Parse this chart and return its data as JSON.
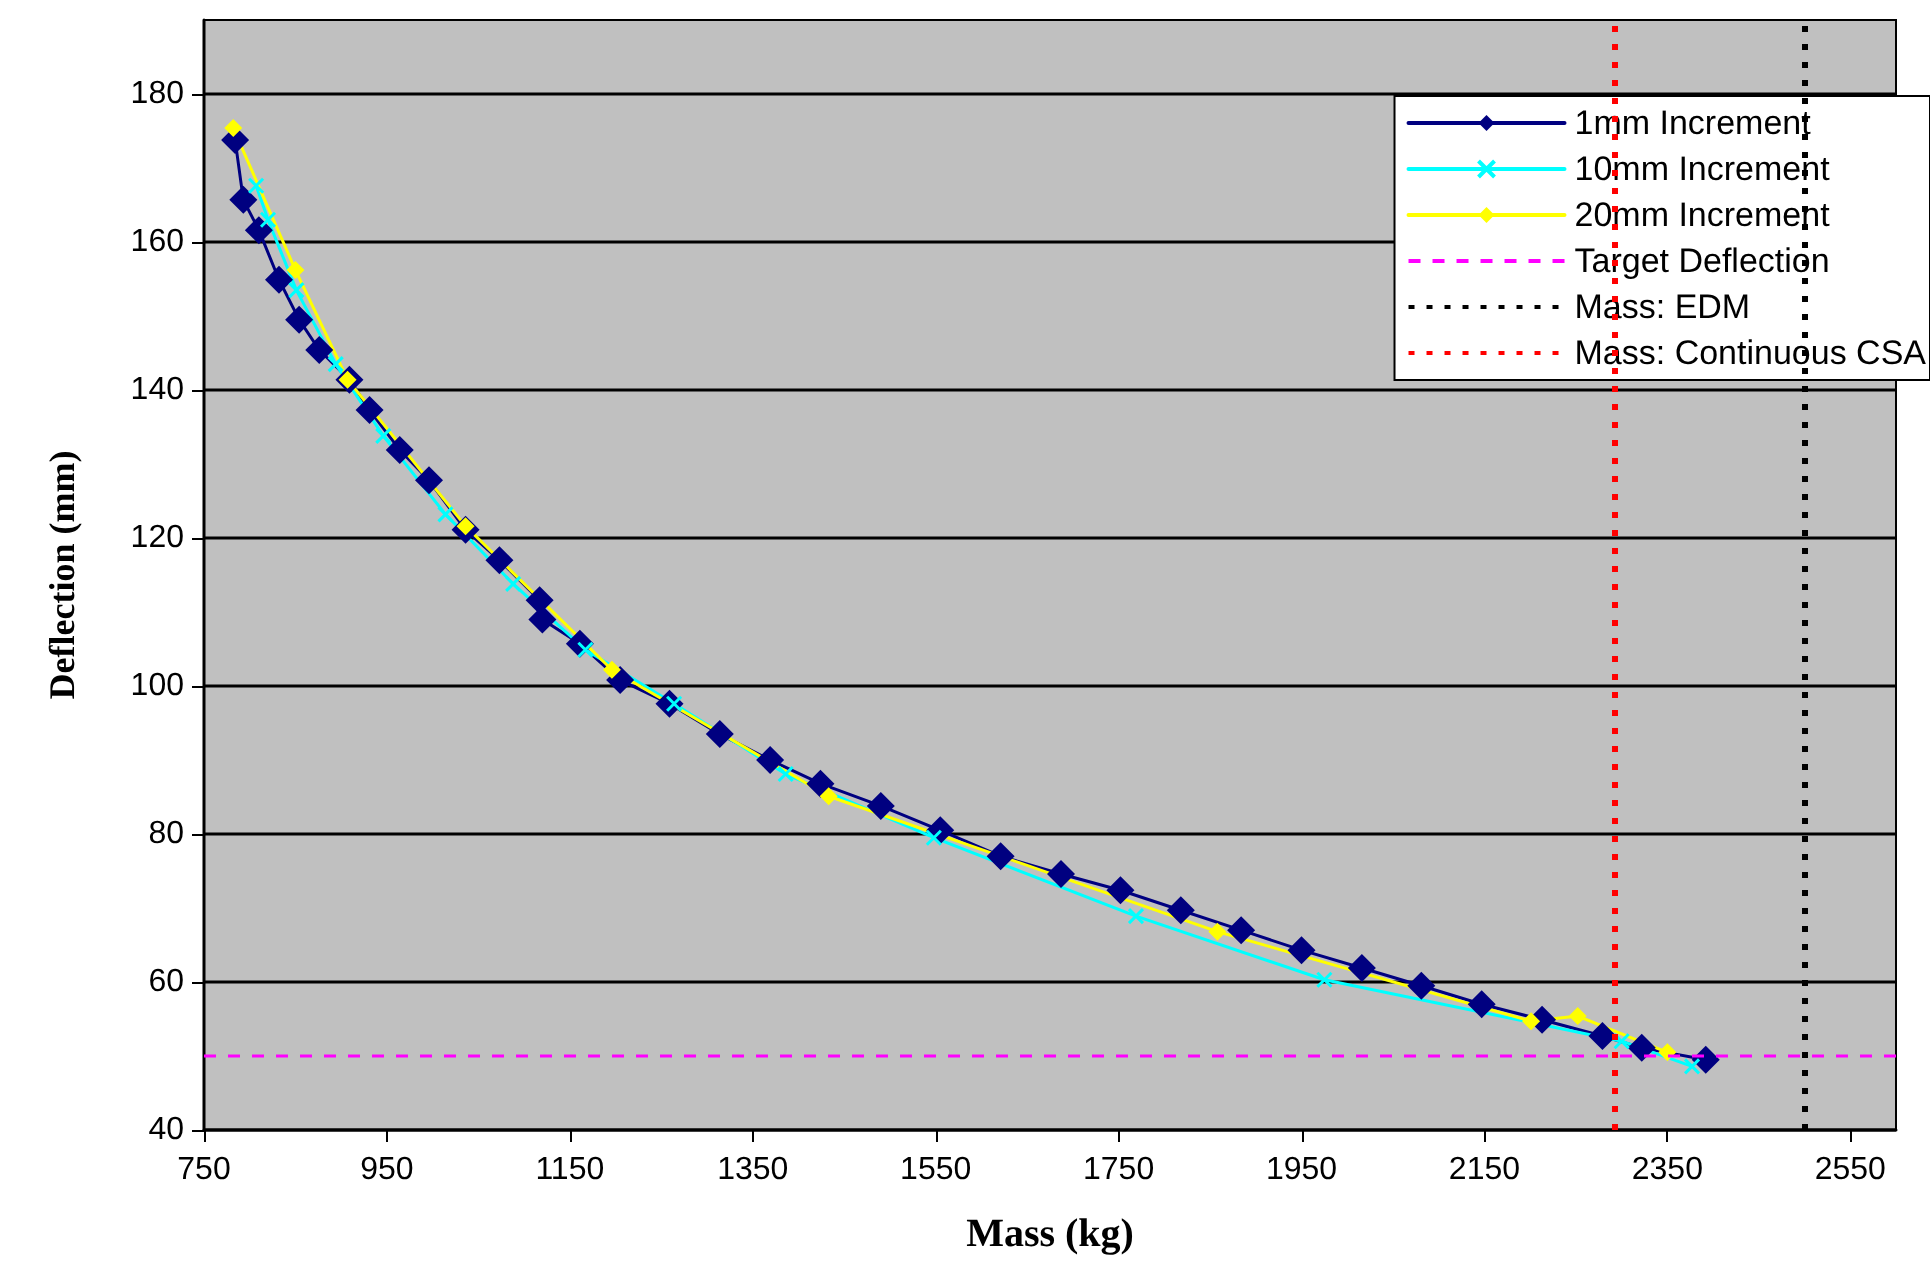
{
  "chart_data": {
    "type": "line",
    "xlabel": "Mass (kg)",
    "ylabel": "Deflection (mm)",
    "xlim": [
      750,
      2600
    ],
    "xticks": [
      750,
      950,
      1150,
      1350,
      1550,
      1750,
      1950,
      2150,
      2350,
      2550
    ],
    "ylim": [
      40,
      190
    ],
    "yticks": [
      40,
      60,
      80,
      100,
      120,
      140,
      160,
      180
    ],
    "grid": "y",
    "legend": "top right",
    "line_style": "solid",
    "series": [
      {
        "name": "1mm Increment",
        "color": "#000080",
        "marker": "diamond",
        "x": [
          784,
          793,
          810,
          832,
          854,
          876,
          909,
          931,
          964,
          996,
          1036,
          1073,
          1117,
          1120,
          1161,
          1205,
          1259,
          1314,
          1369,
          1424,
          1490,
          1555,
          1621,
          1687,
          1752,
          1818,
          1884,
          1950,
          2016,
          2081,
          2147,
          2213,
          2279,
          2322,
          2392
        ],
        "values": [
          173.8,
          165.7,
          161.6,
          154.9,
          149.5,
          145.4,
          141.4,
          137.3,
          131.9,
          127.8,
          121.1,
          117,
          111.6,
          109,
          105.7,
          100.8,
          97.6,
          93.5,
          90,
          86.8,
          83.8,
          80.5,
          77,
          74.6,
          72.4,
          69.7,
          67,
          64.3,
          61.9,
          59.5,
          57,
          54.9,
          52.7,
          51.1,
          49.5
        ]
      },
      {
        "name": "10mm Increment",
        "color": "#00ffff",
        "marker": "cross",
        "x": [
          807,
          820,
          851,
          894,
          946,
          1014,
          1088,
          1167,
          1264,
          1386,
          1548,
          1769,
          1975,
          2300,
          2377
        ],
        "values": [
          167.6,
          163,
          153.5,
          143.5,
          133.8,
          123.2,
          113.8,
          104.9,
          97.6,
          88.1,
          79.5,
          68.9,
          60.3,
          52,
          48.6
        ]
      },
      {
        "name": "20mm Increment",
        "color": "#ffff00",
        "marker": "diamond",
        "x": [
          782,
          850,
          907,
          1036,
          1196,
          1433,
          1858,
          2201,
          2252,
          2350
        ],
        "values": [
          175.4,
          156.2,
          141.4,
          121.6,
          102.2,
          85.1,
          66.8,
          54.7,
          55.4,
          50.5
        ]
      }
    ],
    "ref_lines": [
      {
        "axis": "y",
        "value": 50,
        "label": "Target Deflection",
        "color": "#ff00ff",
        "line_style": "dashed"
      },
      {
        "axis": "x",
        "value": 2500,
        "label": "Mass: EDM",
        "color": "#000000",
        "line_style": "dotted"
      },
      {
        "axis": "x",
        "value": 2293,
        "label": "Mass: Continuous CSA",
        "color": "#ff0000",
        "line_style": "dotted"
      }
    ]
  }
}
